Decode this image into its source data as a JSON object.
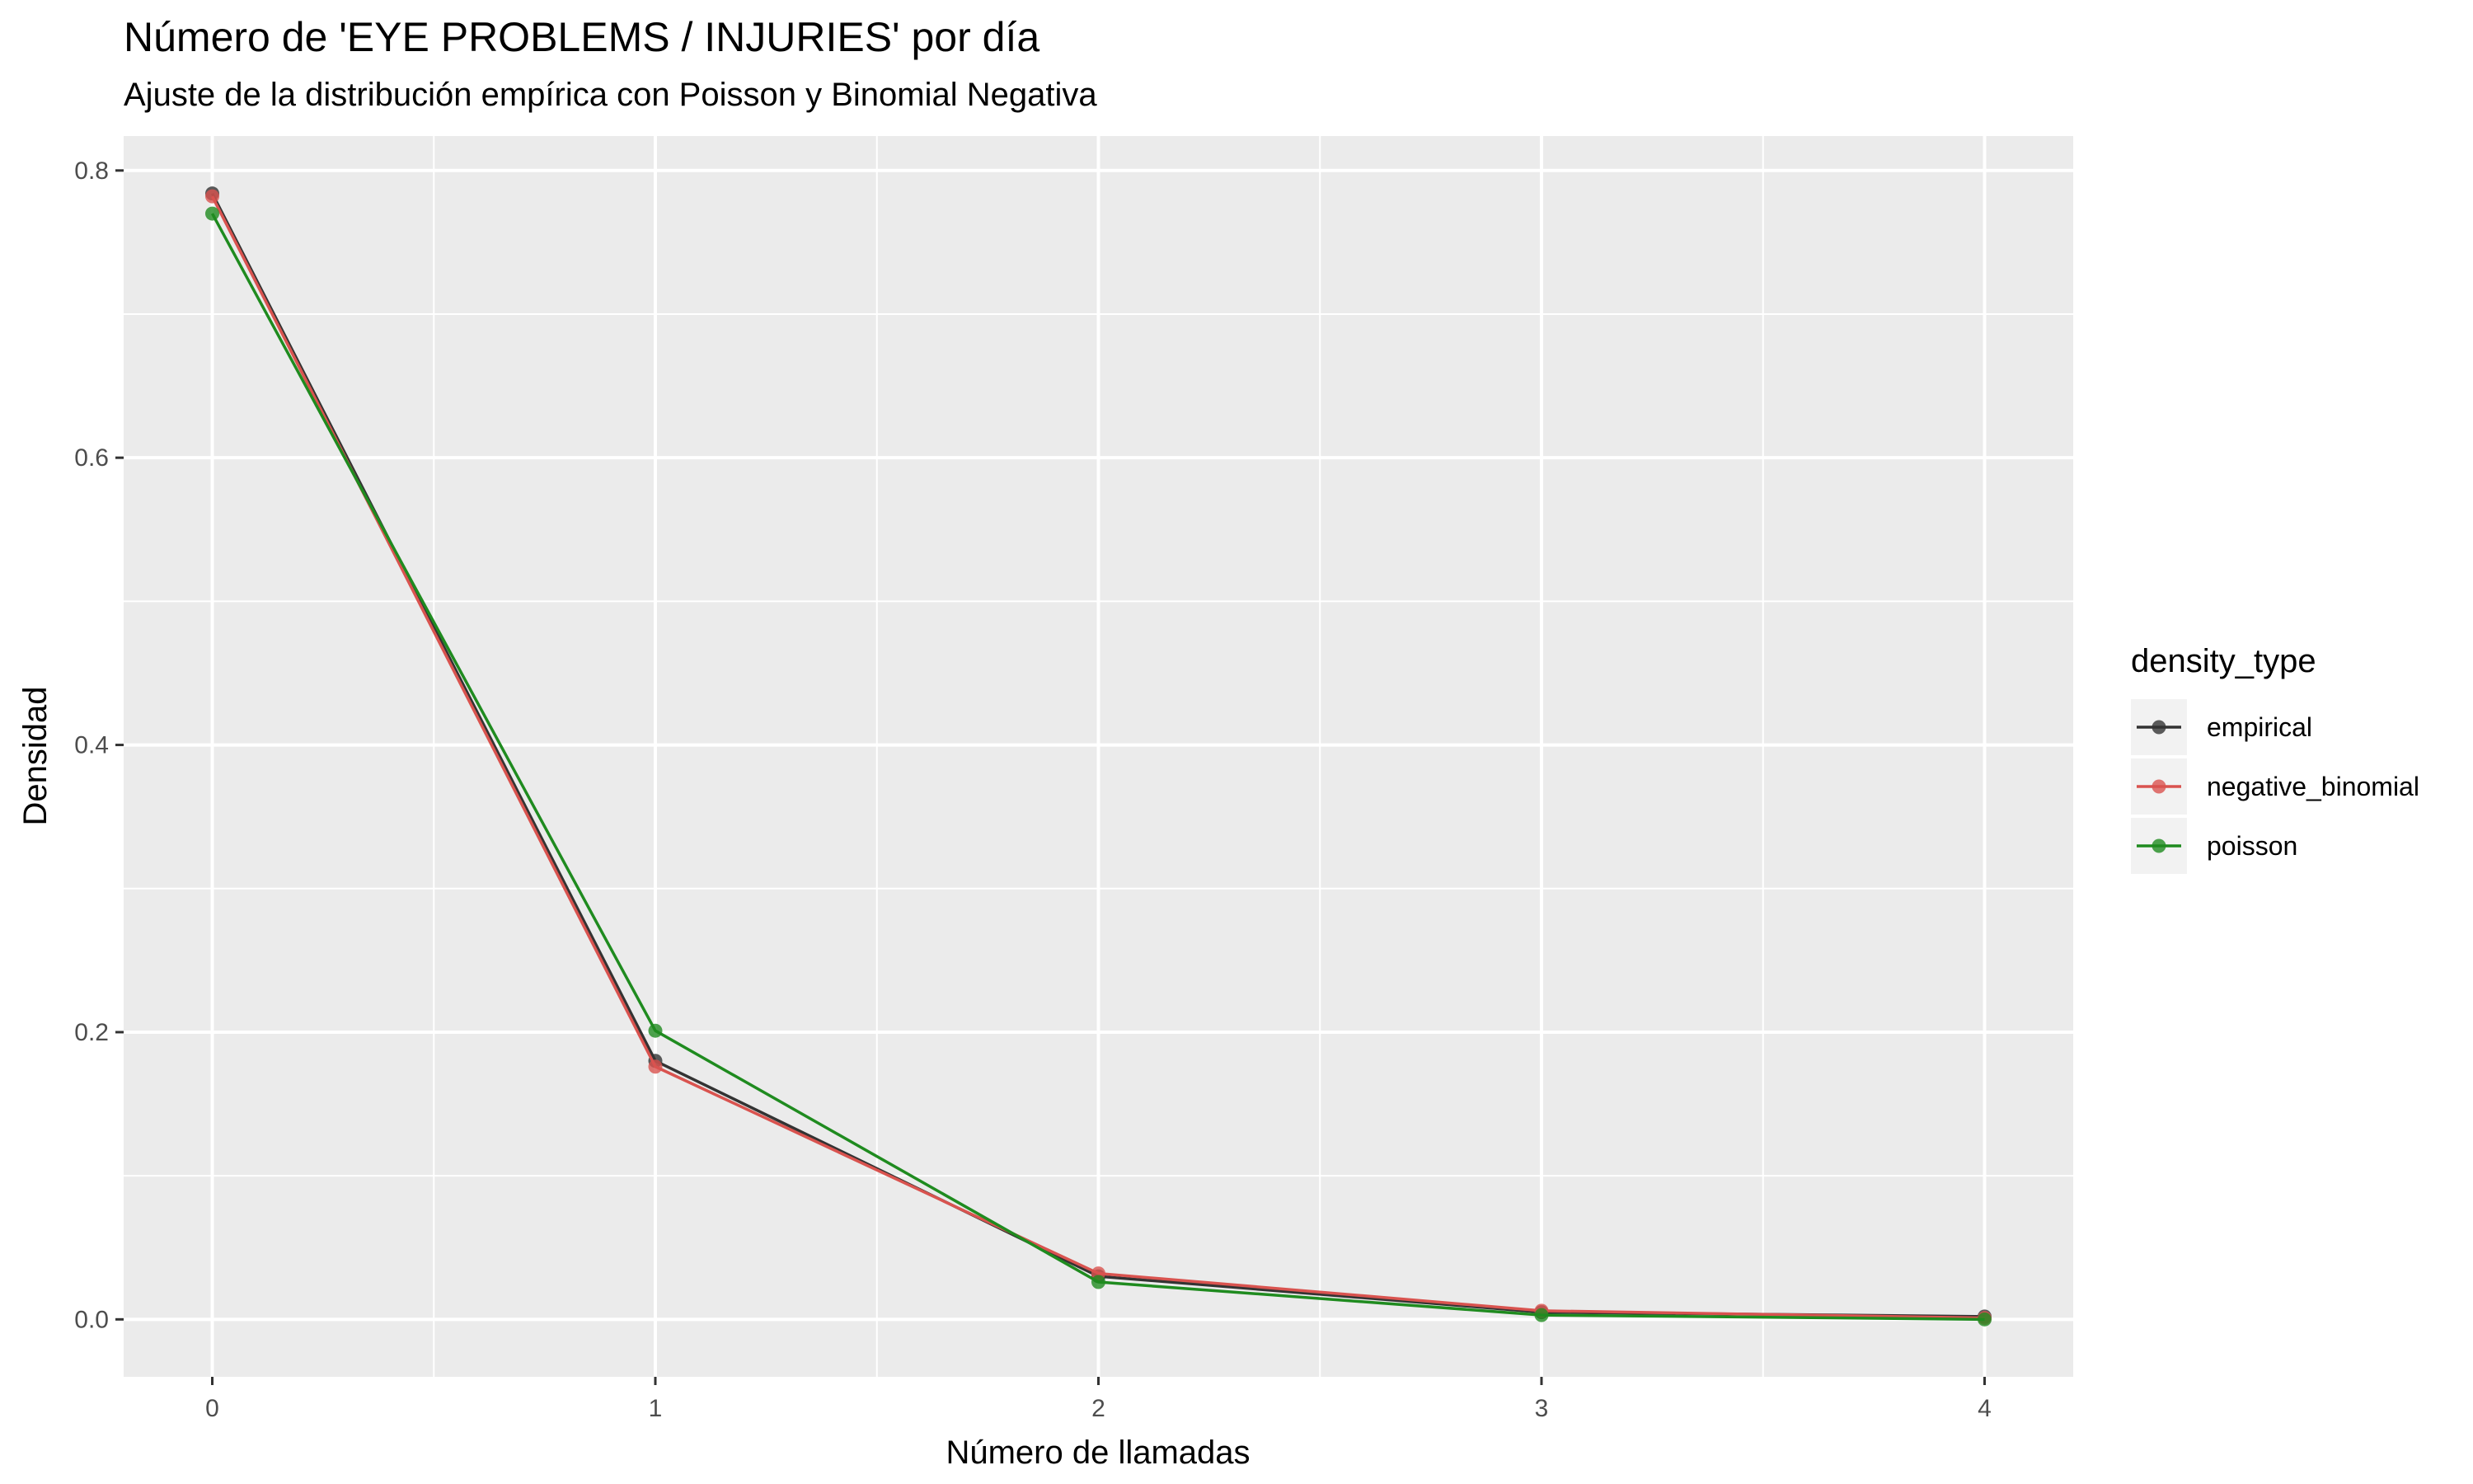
{
  "chart_data": {
    "type": "line",
    "title": "Número de 'EYE PROBLEMS / INJURIES' por día",
    "subtitle": "Ajuste de la distribución empírica con Poisson y Binomial Negativa",
    "xlabel": "Número de llamadas",
    "ylabel": "Densidad",
    "x": [
      0,
      1,
      2,
      3,
      4
    ],
    "x_ticks": [
      "0",
      "1",
      "2",
      "3",
      "4"
    ],
    "y_ticks": [
      "0.0",
      "0.2",
      "0.4",
      "0.6",
      "0.8"
    ],
    "xlim": [
      -0.2,
      4.2
    ],
    "ylim": [
      -0.04,
      0.824
    ],
    "grid": true,
    "legend": {
      "title": "density_type",
      "position": "right"
    },
    "series": [
      {
        "name": "empirical",
        "color": "#333333",
        "values": [
          0.784,
          0.18,
          0.03,
          0.005,
          0.002
        ]
      },
      {
        "name": "negative_binomial",
        "color": "#d9534f",
        "values": [
          0.782,
          0.176,
          0.032,
          0.006,
          0.001
        ]
      },
      {
        "name": "poisson",
        "color": "#1f8b1f",
        "values": [
          0.77,
          0.201,
          0.026,
          0.003,
          0.0
        ]
      }
    ]
  }
}
